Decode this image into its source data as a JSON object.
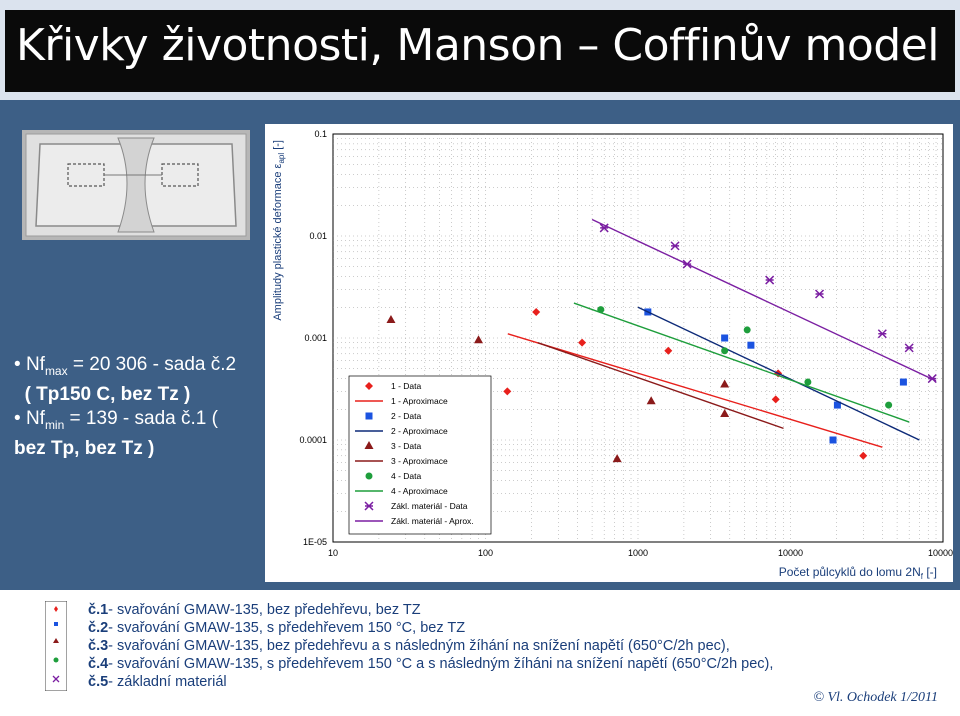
{
  "title": "Křivky životnosti, Manson – Coffinův model",
  "bullets": [
    {
      "main": "Nf",
      "sub": "max",
      "rest": " = 20 306 - sada č.2"
    },
    {
      "text": "( Tp150 C, bez Tz )"
    },
    {
      "main": "Nf",
      "sub": "min",
      "rest": " = 139 - sada č.1 ("
    },
    {
      "text": "bez Tp, bez Tz )"
    }
  ],
  "notes": [
    {
      "num": "č.1",
      "text": "- svařování GMAW-135, bez předehřevu, bez TZ"
    },
    {
      "num": "č.2",
      "text": "- svařování GMAW-135, s předehřevem 150 °C, bez TZ"
    },
    {
      "num": "č.3",
      "text": "- svařování GMAW-135, bez předehřevu a s následným žíhání na   snížení napětí   (650°C/2h pec),"
    },
    {
      "num": "č.4",
      "text": "- svařování GMAW-135, s předehřevem 150  °C a s následným žíháni na snížení  napětí  (650°C/2h pec),"
    },
    {
      "num": "č.5",
      "text": "- základní materiál"
    }
  ],
  "footer": "© Vl. Ochodek  1/2011",
  "chart_data": {
    "type": "scatter",
    "xlabel": "Počet půlcyklů do lomu 2N",
    "xlabel_sub": "f",
    "xlabel_unit": " [-]",
    "ylabel": "Amplitudy plastické deformace ε",
    "ylabel_sub": "apl",
    "ylabel_unit": " [-]",
    "xscale": "log",
    "yscale": "log",
    "xlim": [
      10,
      100000
    ],
    "ylim": [
      1e-05,
      0.1
    ],
    "xticks": [
      "10",
      "100",
      "1000",
      "10000",
      "100000"
    ],
    "yticks": [
      "1E-05",
      "0.0001",
      "0.001",
      "0.01",
      "0.1"
    ],
    "grid": true,
    "legend_position": "bottom-left",
    "series": [
      {
        "name": "1 - Data",
        "kind": "points",
        "marker": "diamond",
        "color": "#e8201c",
        "points": [
          [
            139,
            0.0003
          ],
          [
            215,
            0.0018
          ],
          [
            430,
            0.0009
          ],
          [
            1580,
            0.00075
          ],
          [
            8300,
            0.00045
          ],
          [
            8000,
            0.00025
          ],
          [
            30000,
            7e-05
          ]
        ]
      },
      {
        "name": "1 - Aproximace",
        "kind": "line",
        "color": "#e8201c",
        "points": [
          [
            140,
            0.0011
          ],
          [
            40000,
            8.5e-05
          ]
        ]
      },
      {
        "name": "2 - Data",
        "kind": "points",
        "marker": "square",
        "color": "#1b53e0",
        "points": [
          [
            1160,
            0.0018
          ],
          [
            3700,
            0.001
          ],
          [
            5500,
            0.00085
          ],
          [
            20306,
            0.00022
          ],
          [
            19000,
            0.0001
          ],
          [
            55000,
            0.00037
          ]
        ]
      },
      {
        "name": "2 - Aproximace",
        "kind": "line",
        "color": "#0d2a78",
        "points": [
          [
            1000,
            0.002
          ],
          [
            70000,
            0.0001
          ]
        ]
      },
      {
        "name": "3 - Data",
        "kind": "points",
        "marker": "triangle",
        "color": "#8b1a1a",
        "points": [
          [
            24,
            0.0015
          ],
          [
            90,
            0.00095
          ],
          [
            1220,
            0.00024
          ],
          [
            3700,
            0.00035
          ],
          [
            3700,
            0.00018
          ],
          [
            730,
            6.5e-05
          ]
        ]
      },
      {
        "name": "3 - Aproximace",
        "kind": "line",
        "color": "#8b1a1a",
        "points": [
          [
            220,
            0.0009
          ],
          [
            9000,
            0.00013
          ]
        ]
      },
      {
        "name": "4 - Data",
        "kind": "points",
        "marker": "circle",
        "color": "#1e9e3c",
        "points": [
          [
            570,
            0.0019
          ],
          [
            3700,
            0.00075
          ],
          [
            5200,
            0.0012
          ],
          [
            13000,
            0.00037
          ],
          [
            44000,
            0.00022
          ]
        ]
      },
      {
        "name": "4 - Aproximace",
        "kind": "line",
        "color": "#1e9e3c",
        "points": [
          [
            380,
            0.0022
          ],
          [
            60000,
            0.00015
          ]
        ]
      },
      {
        "name": "Zákl. materiál - Data",
        "kind": "points",
        "marker": "star",
        "color": "#7b1fa2",
        "points": [
          [
            600,
            0.012
          ],
          [
            1750,
            0.008
          ],
          [
            2100,
            0.0053
          ],
          [
            7300,
            0.0037
          ],
          [
            15500,
            0.0027
          ],
          [
            40000,
            0.0011
          ],
          [
            60000,
            0.0008
          ],
          [
            85000,
            0.0004
          ]
        ]
      },
      {
        "name": "Zákl. materiál - Aprox.",
        "kind": "line",
        "color": "#7b1fa2",
        "points": [
          [
            500,
            0.0145
          ],
          [
            90000,
            0.00038
          ]
        ]
      }
    ]
  }
}
